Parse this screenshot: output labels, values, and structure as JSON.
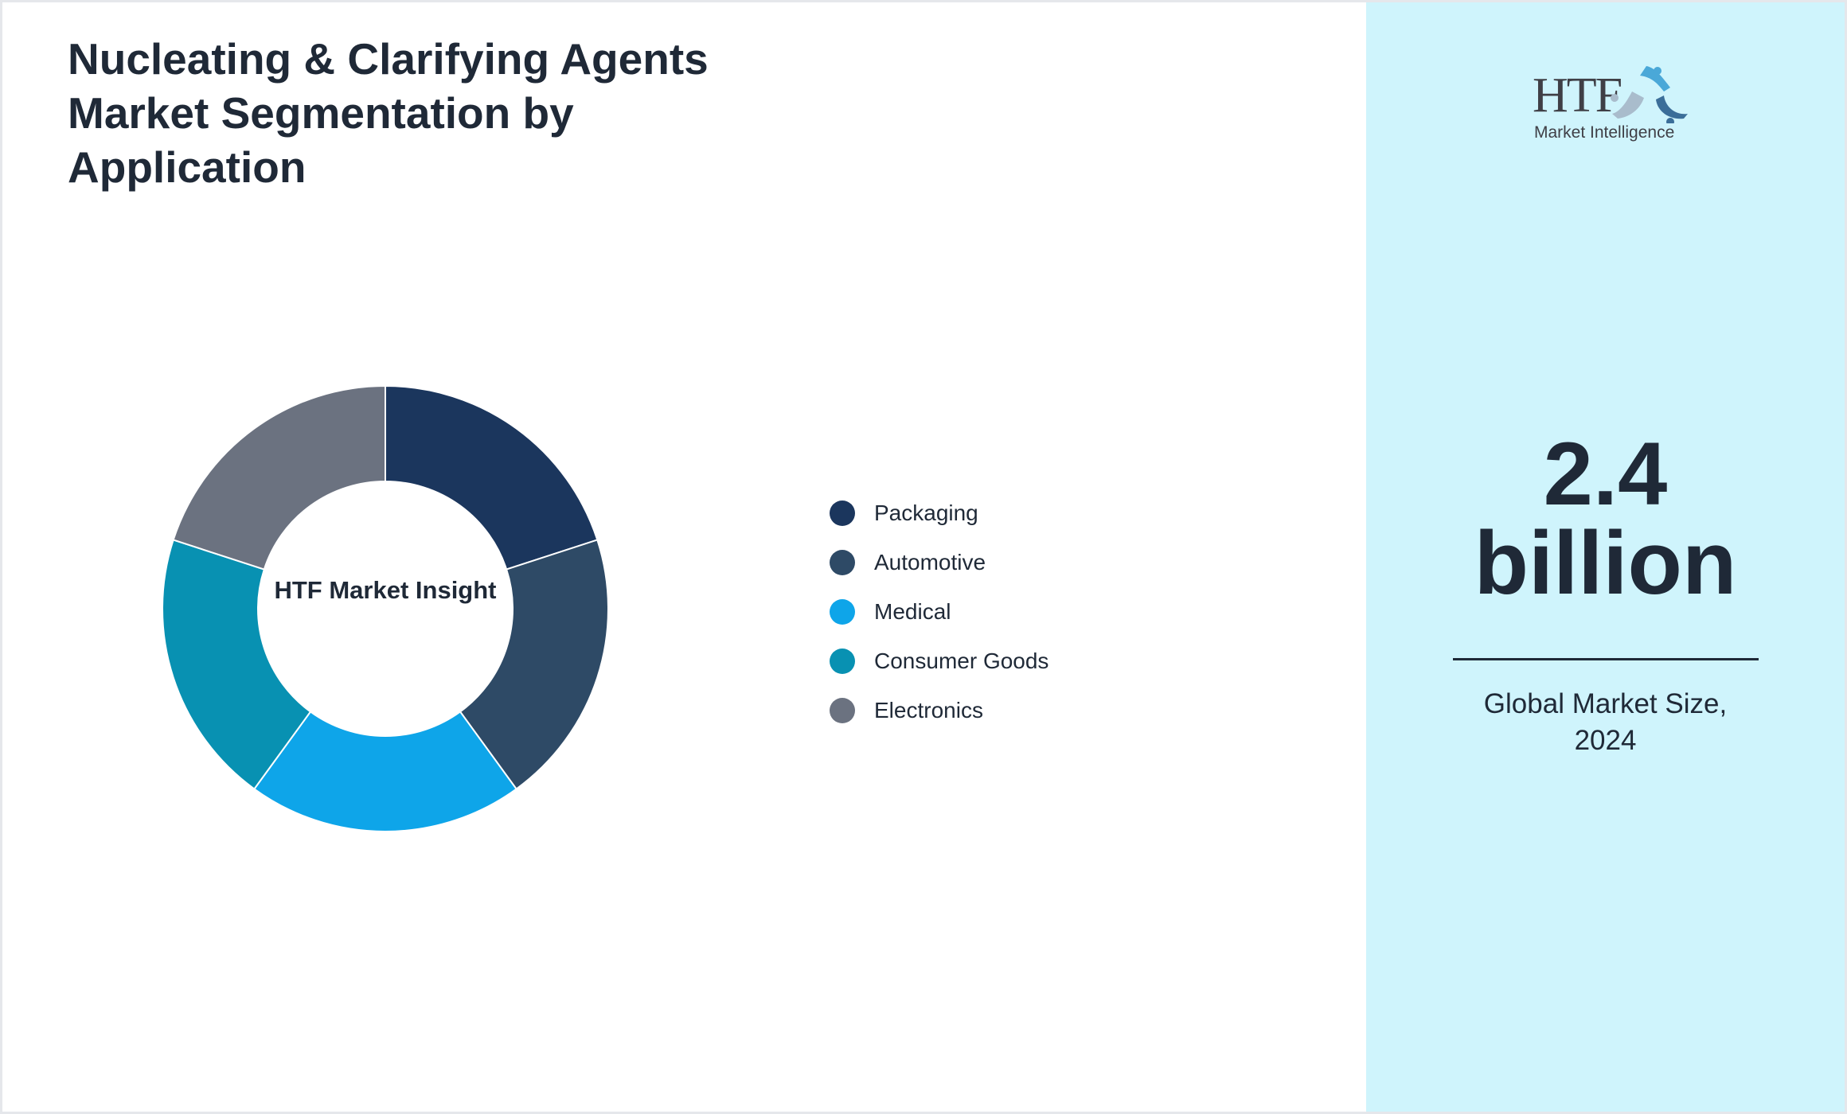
{
  "title": "Nucleating & Clarifying Agents Market Segmentation by Application",
  "chart_data": {
    "type": "pie",
    "variant": "donut",
    "center_label": "HTF Market Insight",
    "categories": [
      "Packaging",
      "Automotive",
      "Medical",
      "Consumer Goods",
      "Electronics"
    ],
    "values": [
      20,
      20,
      20,
      20,
      20
    ],
    "colors": [
      "#1b365d",
      "#2e4a66",
      "#0ea5e9",
      "#0891b2",
      "#6b7280"
    ],
    "legend_position": "right"
  },
  "side": {
    "logo_text": "HTF",
    "logo_subtext": "Market Intelligence",
    "market_value": "2.4",
    "market_unit": "billion",
    "caption_line1": "Global Market Size,",
    "caption_line2": "2024",
    "background": "#cff4fc"
  }
}
